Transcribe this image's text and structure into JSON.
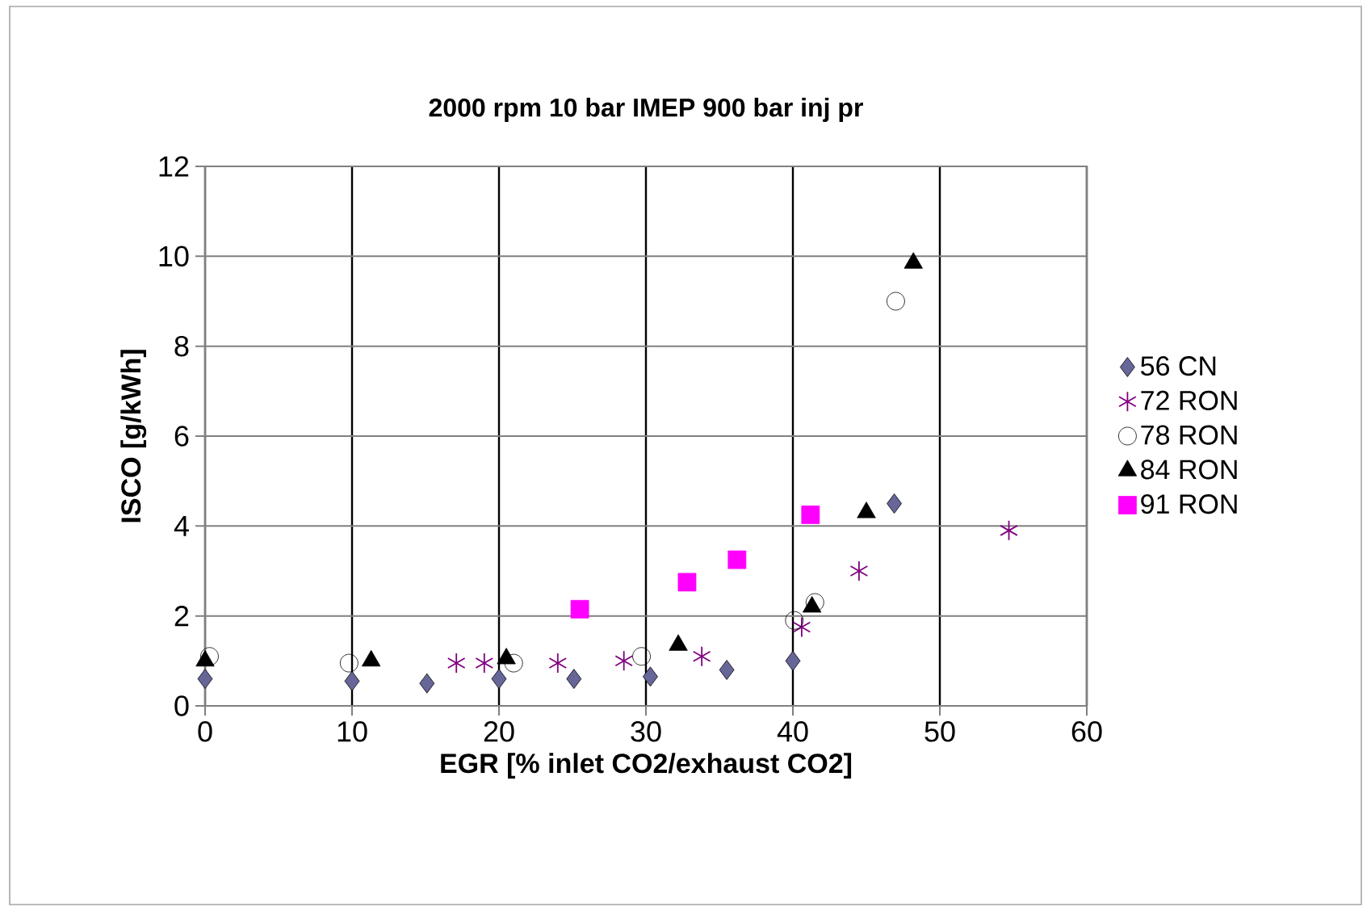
{
  "chart_data": {
    "type": "scatter",
    "title": "2000 rpm 10 bar IMEP 900 bar inj pr",
    "xlabel": "EGR [% inlet CO2/exhaust CO2]",
    "ylabel": "ISCO [g/kWh]",
    "xlim": [
      0,
      60
    ],
    "xticks": [
      0,
      10,
      20,
      30,
      40,
      50,
      60
    ],
    "ylim": [
      0,
      12
    ],
    "yticks": [
      0,
      2,
      4,
      6,
      8,
      10,
      12
    ],
    "grid": true,
    "legend": "right",
    "series": [
      {
        "name": "56 CN",
        "color": "#666699",
        "marker": "diamond",
        "x": [
          0,
          10,
          15.1,
          20,
          25.1,
          30.3,
          35.5,
          40,
          46.9
        ],
        "values": [
          0.6,
          0.55,
          0.5,
          0.6,
          0.6,
          0.65,
          0.8,
          1.0,
          4.5
        ]
      },
      {
        "name": "72 RON",
        "color": "#800080",
        "marker": "cross",
        "x": [
          17.1,
          19,
          24,
          28.5,
          33.8,
          40.6,
          44.5,
          54.7
        ],
        "values": [
          0.95,
          0.95,
          0.95,
          1.0,
          1.1,
          1.75,
          3.0,
          3.9
        ]
      },
      {
        "name": "78 RON",
        "color": "#000000",
        "marker": "circle",
        "x": [
          0.3,
          9.8,
          21,
          29.7,
          40.1,
          41.5,
          47
        ],
        "values": [
          1.1,
          0.95,
          0.95,
          1.1,
          1.9,
          2.3,
          9.0
        ]
      },
      {
        "name": "84 RON",
        "color": "#000000",
        "marker": "triangle",
        "x": [
          0,
          11.3,
          20.5,
          32.2,
          41.3,
          45,
          48.2
        ],
        "values": [
          1.0,
          1.0,
          1.05,
          1.35,
          2.2,
          4.3,
          9.85
        ]
      },
      {
        "name": "91 RON",
        "color": "#ff00ff",
        "marker": "square",
        "x": [
          25.5,
          32.8,
          36.2,
          41.2
        ],
        "values": [
          2.15,
          2.75,
          3.25,
          4.25
        ]
      }
    ]
  }
}
